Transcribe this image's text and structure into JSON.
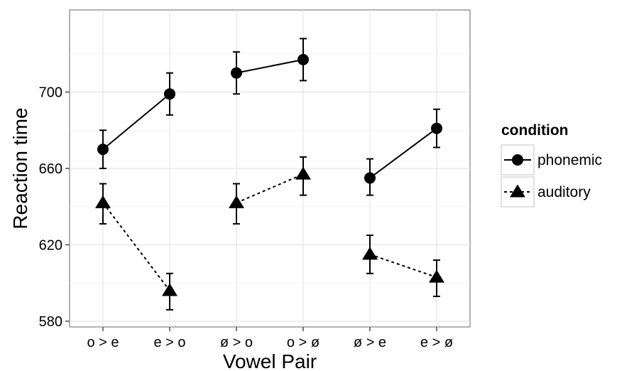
{
  "chart_data": {
    "type": "line",
    "title": "",
    "xlabel": "Vowel Pair",
    "ylabel": "Reaction time",
    "categories": [
      "o > e",
      "e > o",
      "ø > o",
      "o > ø",
      "ø > e",
      "e > ø"
    ],
    "groups": [
      [
        0,
        1
      ],
      [
        2,
        3
      ],
      [
        4,
        5
      ]
    ],
    "yticks": [
      "580",
      "620",
      "660",
      "700"
    ],
    "ylim": [
      577,
      743
    ],
    "grid": true,
    "legend": {
      "title": "condition",
      "position": "right"
    },
    "series": [
      {
        "name": "phonemic",
        "marker": "circle",
        "line": "solid",
        "values": [
          670,
          699,
          710,
          717,
          655,
          681
        ],
        "ci_low": [
          660,
          688,
          699,
          706,
          646,
          671
        ],
        "ci_high": [
          680,
          710,
          721,
          728,
          665,
          691
        ]
      },
      {
        "name": "auditory",
        "marker": "triangle",
        "line": "dashed",
        "values": [
          642,
          596,
          642,
          657,
          615,
          603
        ],
        "ci_low": [
          631,
          586,
          631,
          646,
          605,
          593
        ],
        "ci_high": [
          652,
          605,
          652,
          666,
          625,
          612
        ]
      }
    ]
  }
}
